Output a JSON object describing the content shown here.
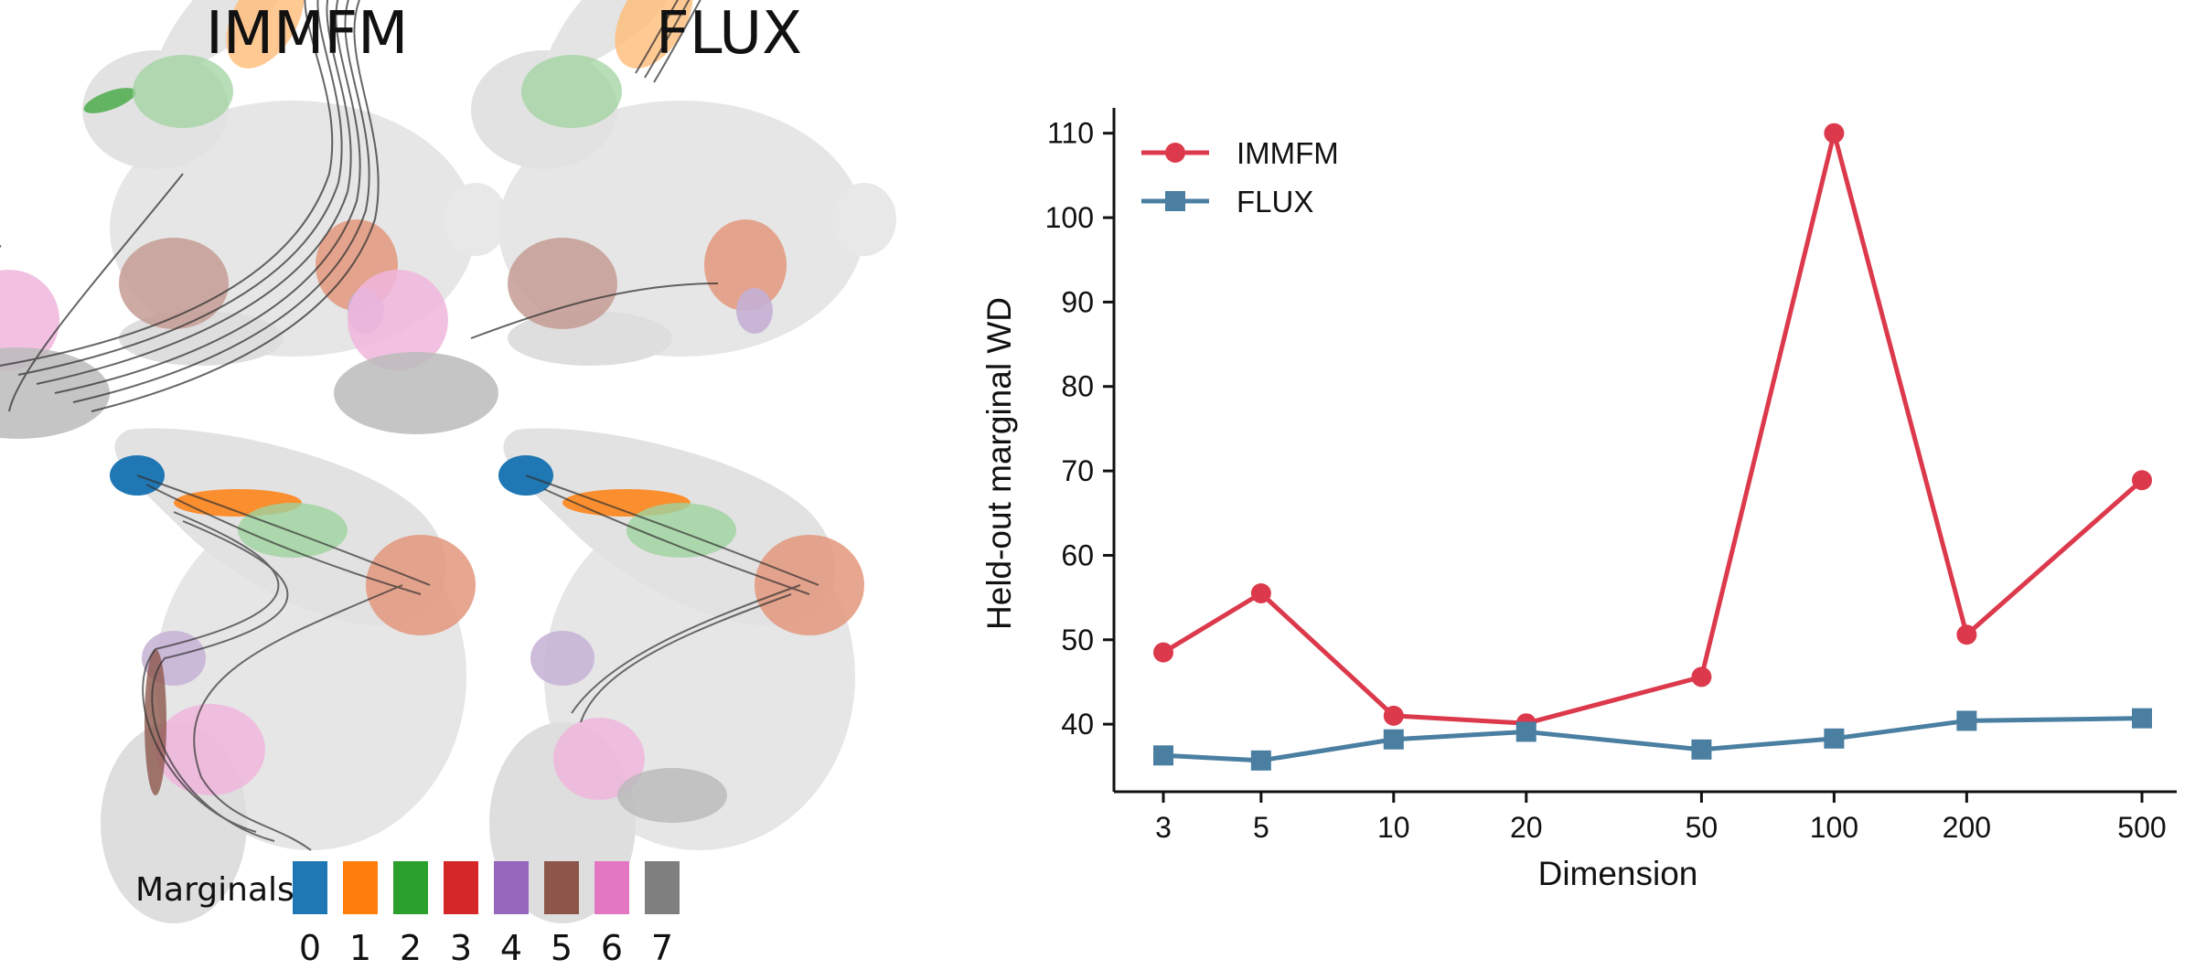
{
  "panels": {
    "left_title": "IMMFM",
    "right_title": "FLUX"
  },
  "marginals": {
    "label": "Marginals",
    "items": [
      {
        "label": "0",
        "color": "#1f77b4"
      },
      {
        "label": "1",
        "color": "#ff7f0e"
      },
      {
        "label": "2",
        "color": "#2ca02c"
      },
      {
        "label": "3",
        "color": "#d62728"
      },
      {
        "label": "4",
        "color": "#9467bd"
      },
      {
        "label": "5",
        "color": "#8c564b"
      },
      {
        "label": "6",
        "color": "#e377c2"
      },
      {
        "label": "7",
        "color": "#7f7f7f"
      }
    ]
  },
  "chart_data": {
    "type": "line",
    "xlabel": "Dimension",
    "ylabel": "Held-out marginal WD",
    "x_scale": "log",
    "x": [
      3,
      5,
      10,
      20,
      50,
      100,
      200,
      500
    ],
    "xticks": [
      "3",
      "5",
      "10",
      "20",
      "50",
      "100",
      "200",
      "500"
    ],
    "ylim": [
      32,
      113
    ],
    "yticks": [
      40,
      50,
      60,
      70,
      80,
      90,
      100,
      110
    ],
    "grid": false,
    "legend_position": "top-left",
    "series": [
      {
        "name": "IMMFM",
        "color": "#dc3a4c",
        "marker": "circle",
        "values": [
          48.5,
          55.5,
          41.0,
          40.1,
          45.6,
          110.0,
          50.6,
          68.9
        ]
      },
      {
        "name": "FLUX",
        "color": "#4a7fa1",
        "marker": "square",
        "values": [
          36.3,
          35.7,
          38.2,
          39.1,
          37.0,
          38.3,
          40.4,
          40.7
        ]
      }
    ]
  }
}
